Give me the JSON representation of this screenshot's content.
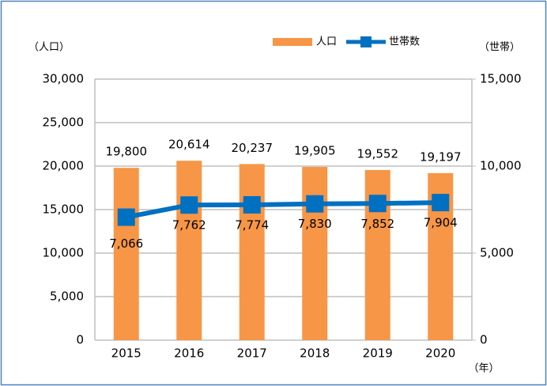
{
  "chart_data": {
    "type": "bar",
    "y_label": "（人口）",
    "y2_label": "（世帯）",
    "x_label": "（年）",
    "categories": [
      "2015",
      "2016",
      "2017",
      "2018",
      "2019",
      "2020"
    ],
    "series": [
      {
        "name": "人口",
        "type": "bar",
        "color": "#f79646",
        "values": [
          19800,
          20614,
          20237,
          19905,
          19552,
          19197
        ],
        "value_labels": [
          "19,800",
          "20,614",
          "20,237",
          "19,905",
          "19,552",
          "19,197"
        ]
      },
      {
        "name": "世帯数",
        "type": "line",
        "axis": "y2",
        "color": "#0070c0",
        "values": [
          7066,
          7762,
          7774,
          7830,
          7852,
          7904
        ],
        "value_labels": [
          "7,066",
          "7,762",
          "7,774",
          "7,830",
          "7,852",
          "7,904"
        ]
      }
    ],
    "ylim": [
      0,
      30000
    ],
    "yticks": [
      0,
      {
        "value": 5000,
        "label": "5,000"
      },
      {
        "value": 10000,
        "label": "10,000"
      },
      {
        "value": 15000,
        "label": "15,000"
      },
      {
        "value": 20000,
        "label": "20,000"
      },
      {
        "value": 25000,
        "label": "25,000"
      },
      {
        "value": 30000,
        "label": "30,000"
      }
    ],
    "y2lim": [
      0,
      15000
    ],
    "y2ticks": [
      0,
      {
        "value": 5000,
        "label": "5,000"
      },
      {
        "value": 10000,
        "label": "10,000"
      },
      {
        "value": 15000,
        "label": "15,000"
      }
    ],
    "grid": true,
    "legend": "top"
  }
}
